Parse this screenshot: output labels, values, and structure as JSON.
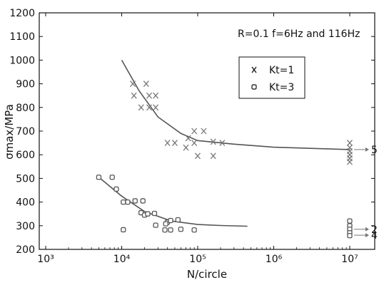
{
  "chart_data": {
    "type": "scatter",
    "title": "",
    "annotation": "R=0.1 f=6Hz and 116Hz",
    "xlabel": "N/circle",
    "ylabel": "σmax/MPa",
    "x_scale": "log",
    "xlim": [
      1000,
      10000000
    ],
    "ylim": [
      200,
      1200
    ],
    "x_ticks": [
      "10³",
      "10⁴",
      "10⁵",
      "10⁶",
      "10⁷"
    ],
    "y_ticks": [
      200,
      300,
      400,
      500,
      600,
      700,
      800,
      900,
      1000,
      1100,
      1200
    ],
    "grid": false,
    "legend_position": "top-right",
    "series": [
      {
        "name": "Kt=1",
        "marker": "x",
        "points": [
          [
            14000,
            900
          ],
          [
            21000,
            900
          ],
          [
            14500,
            850
          ],
          [
            23000,
            850
          ],
          [
            28000,
            850
          ],
          [
            18000,
            800
          ],
          [
            23000,
            800
          ],
          [
            28000,
            800
          ],
          [
            40000,
            650
          ],
          [
            50000,
            650
          ],
          [
            70000,
            630
          ],
          [
            75000,
            670
          ],
          [
            90000,
            700
          ],
          [
            120000,
            700
          ],
          [
            90000,
            650
          ],
          [
            160000,
            655
          ],
          [
            210000,
            650
          ],
          [
            100000,
            595
          ],
          [
            160000,
            595
          ],
          [
            10000000,
            650
          ],
          [
            10000000,
            630
          ],
          [
            10000000,
            615
          ],
          [
            10000000,
            600
          ],
          [
            10000000,
            585
          ],
          [
            10000000,
            570
          ]
        ]
      },
      {
        "name": "Kt=3",
        "marker": "o",
        "points": [
          [
            5000,
            505
          ],
          [
            7500,
            505
          ],
          [
            8500,
            455
          ],
          [
            10500,
            400
          ],
          [
            12000,
            400
          ],
          [
            15000,
            405
          ],
          [
            19000,
            405
          ],
          [
            18000,
            355
          ],
          [
            20000,
            345
          ],
          [
            22000,
            350
          ],
          [
            27000,
            352
          ],
          [
            40000,
            315
          ],
          [
            44000,
            322
          ],
          [
            55000,
            325
          ],
          [
            38000,
            308
          ],
          [
            28000,
            302
          ],
          [
            10500,
            283
          ],
          [
            37000,
            282
          ],
          [
            44000,
            282
          ],
          [
            60000,
            285
          ],
          [
            90000,
            282
          ],
          [
            10000000,
            320
          ],
          [
            10000000,
            300
          ],
          [
            10000000,
            285
          ],
          [
            10000000,
            270
          ],
          [
            10000000,
            258
          ]
        ]
      }
    ],
    "fit_curves": [
      {
        "name": "Kt=1",
        "points": [
          [
            10000,
            1000
          ],
          [
            17000,
            870
          ],
          [
            30000,
            760
          ],
          [
            60000,
            690
          ],
          [
            100000,
            660
          ],
          [
            300000,
            645
          ],
          [
            1000000,
            632
          ],
          [
            10000000,
            622
          ]
        ]
      },
      {
        "name": "Kt=3",
        "points": [
          [
            5000,
            505
          ],
          [
            10000,
            425
          ],
          [
            20000,
            360
          ],
          [
            45000,
            320
          ],
          [
            100000,
            305
          ],
          [
            200000,
            301
          ],
          [
            450000,
            298
          ]
        ]
      }
    ],
    "runout_labels": [
      {
        "text": "5",
        "y": 622
      },
      {
        "text": "2",
        "y": 285
      },
      {
        "text": "4",
        "y": 260
      }
    ]
  }
}
